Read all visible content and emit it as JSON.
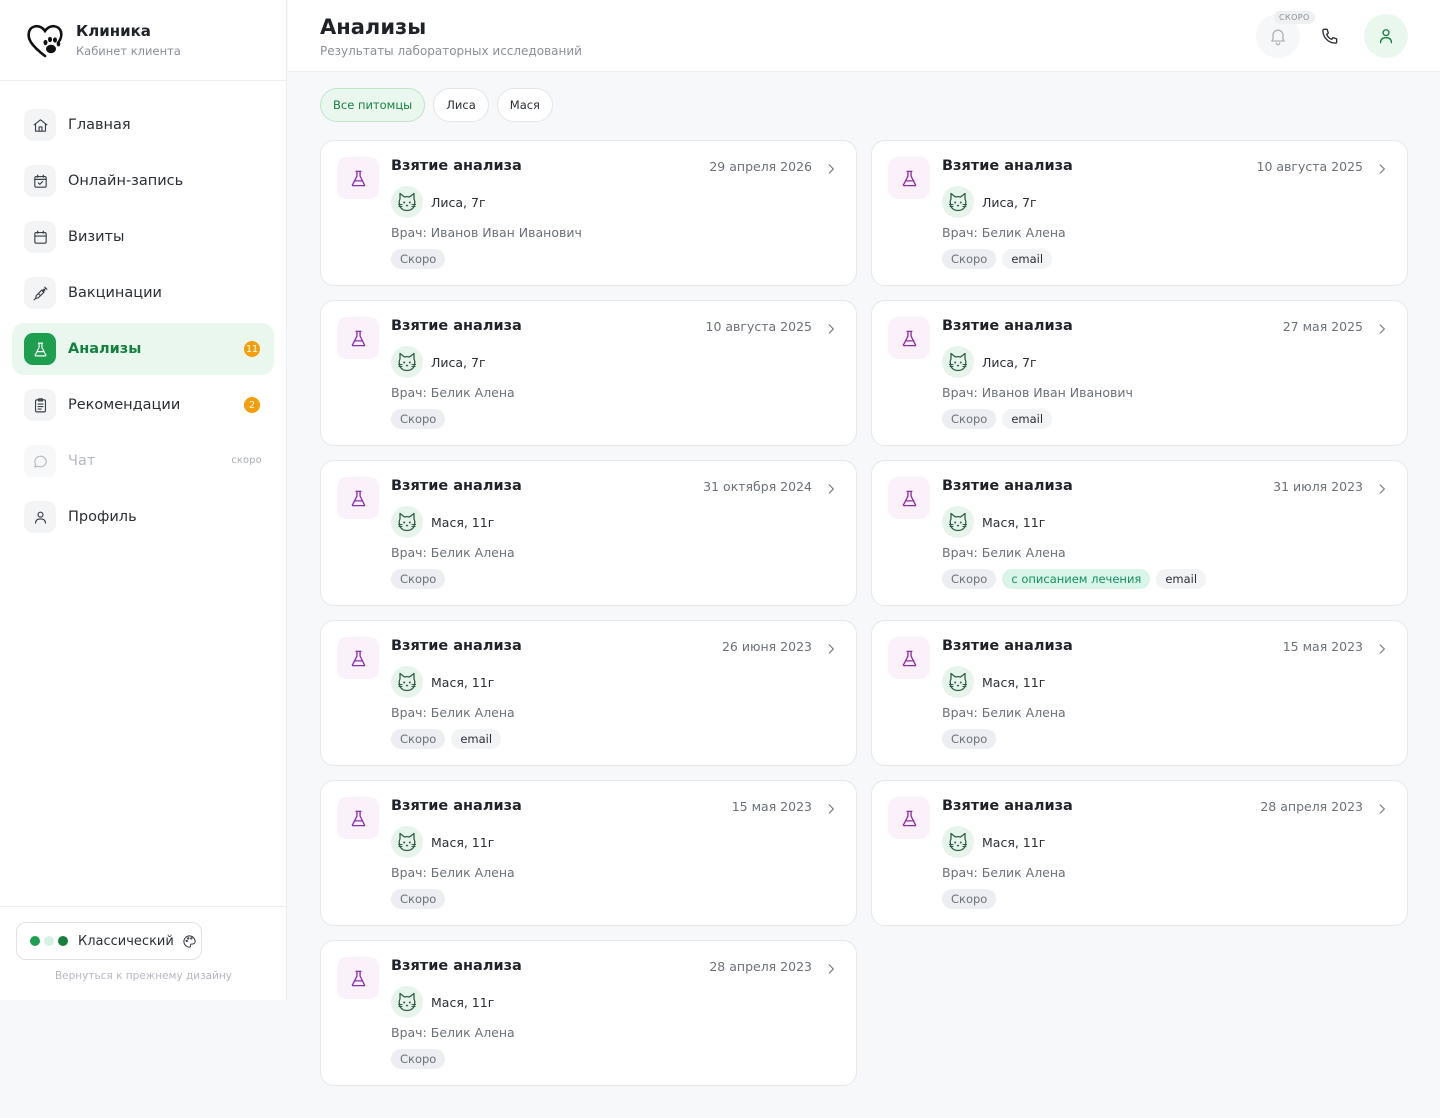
{
  "brand": {
    "name": "Клиника",
    "subtitle": "Кабинет клиента"
  },
  "nav": [
    {
      "label": "Главная",
      "icon": "home-icon"
    },
    {
      "label": "Онлайн-запись",
      "icon": "calendar-check-icon"
    },
    {
      "label": "Визиты",
      "icon": "calendar-icon"
    },
    {
      "label": "Вакцинации",
      "icon": "syringe-icon"
    },
    {
      "label": "Анализы",
      "icon": "flask-icon",
      "badge": "11",
      "active": true
    },
    {
      "label": "Рекомендации",
      "icon": "clipboard-icon",
      "badge": "2"
    },
    {
      "label": "Чат",
      "icon": "chat-icon",
      "soon": "скоро",
      "disabled": true
    },
    {
      "label": "Профиль",
      "icon": "user-icon"
    }
  ],
  "theme": {
    "label": "Классический",
    "colors": [
      "#1e9e4f",
      "#d6f2e0",
      "#15803d"
    ],
    "back_link": "Вернуться к прежнему дизайну"
  },
  "header": {
    "title": "Анализы",
    "subtitle": "Результаты лабораторных исследований",
    "soon_tag": "СКОРО"
  },
  "filters": [
    {
      "label": "Все питомцы",
      "active": true
    },
    {
      "label": "Лиса",
      "active": false
    },
    {
      "label": "Мася",
      "active": false
    }
  ],
  "tag_labels": {
    "soon": "Скоро",
    "email": "email",
    "treatment": "с описанием лечения"
  },
  "cards": [
    {
      "title": "Взятие анализа",
      "date": "29 апреля 2026",
      "pet": "Лиса, 7г",
      "doctor": "Врач: Иванов Иван Иванович",
      "tags": [
        "soon"
      ]
    },
    {
      "title": "Взятие анализа",
      "date": "10 августа 2025",
      "pet": "Лиса, 7г",
      "doctor": "Врач: Белик Алена",
      "tags": [
        "soon",
        "email"
      ]
    },
    {
      "title": "Взятие анализа",
      "date": "10 августа 2025",
      "pet": "Лиса, 7г",
      "doctor": "Врач: Белик Алена",
      "tags": [
        "soon"
      ]
    },
    {
      "title": "Взятие анализа",
      "date": "27 мая 2025",
      "pet": "Лиса, 7г",
      "doctor": "Врач: Иванов Иван Иванович",
      "tags": [
        "soon",
        "email"
      ]
    },
    {
      "title": "Взятие анализа",
      "date": "31 октября 2024",
      "pet": "Мася, 11г",
      "doctor": "Врач: Белик Алена",
      "tags": [
        "soon"
      ]
    },
    {
      "title": "Взятие анализа",
      "date": "31 июля 2023",
      "pet": "Мася, 11г",
      "doctor": "Врач: Белик Алена",
      "tags": [
        "soon",
        "treatment",
        "email"
      ]
    },
    {
      "title": "Взятие анализа",
      "date": "26 июня 2023",
      "pet": "Мася, 11г",
      "doctor": "Врач: Белик Алена",
      "tags": [
        "soon",
        "email"
      ]
    },
    {
      "title": "Взятие анализа",
      "date": "15 мая 2023",
      "pet": "Мася, 11г",
      "doctor": "Врач: Белик Алена",
      "tags": [
        "soon"
      ]
    },
    {
      "title": "Взятие анализа",
      "date": "15 мая 2023",
      "pet": "Мася, 11г",
      "doctor": "Врач: Белик Алена",
      "tags": [
        "soon"
      ]
    },
    {
      "title": "Взятие анализа",
      "date": "28 апреля 2023",
      "pet": "Мася, 11г",
      "doctor": "Врач: Белик Алена",
      "tags": [
        "soon"
      ]
    },
    {
      "title": "Взятие анализа",
      "date": "28 апреля 2023",
      "pet": "Мася, 11г",
      "doctor": "Врач: Белик Алена",
      "tags": [
        "soon"
      ]
    }
  ]
}
